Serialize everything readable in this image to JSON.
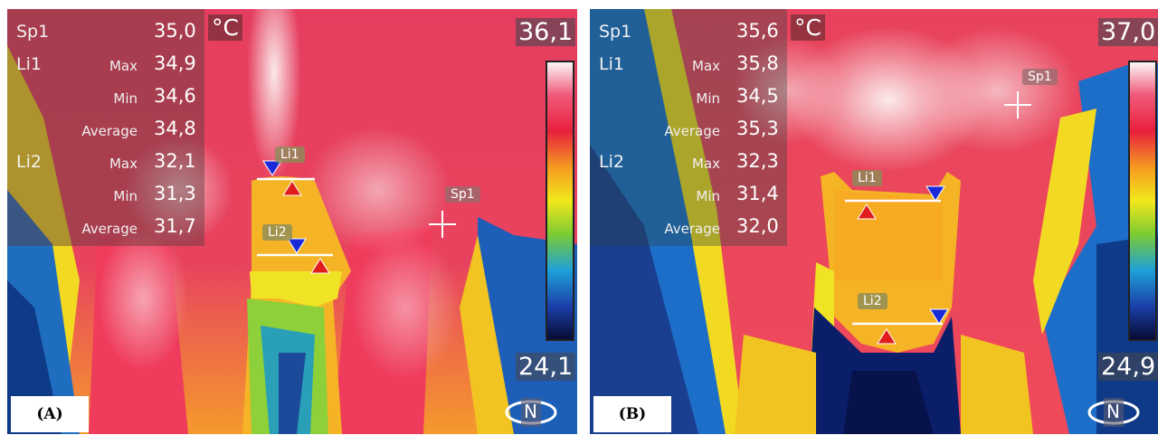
{
  "panels": [
    {
      "id": "A",
      "label": "(A)",
      "unit": "°C",
      "scale_max": "36,1",
      "scale_min": "24,1",
      "compass_letter": "N",
      "tags": {
        "li1": "Li1",
        "li2": "Li2",
        "sp1": "Sp1"
      },
      "readout": {
        "sp1": {
          "name": "Sp1",
          "value": "35,0"
        },
        "li1": {
          "name": "Li1",
          "max_label": "Max",
          "max": "34,9",
          "min_label": "Min",
          "min": "34,6",
          "avg_label": "Average",
          "avg": "34,8"
        },
        "li2": {
          "name": "Li2",
          "max_label": "Max",
          "max": "32,1",
          "min_label": "Min",
          "min": "31,3",
          "avg_label": "Average",
          "avg": "31,7"
        }
      }
    },
    {
      "id": "B",
      "label": "(B)",
      "unit": "°C",
      "scale_max": "37,0",
      "scale_min": "24,9",
      "compass_letter": "N",
      "tags": {
        "li1": "Li1",
        "li2": "Li2",
        "sp1": "Sp1"
      },
      "readout": {
        "sp1": {
          "name": "Sp1",
          "value": "35,6"
        },
        "li1": {
          "name": "Li1",
          "max_label": "Max",
          "max": "35,8",
          "min_label": "Min",
          "min": "34,5",
          "avg_label": "Average",
          "avg": "35,3"
        },
        "li2": {
          "name": "Li2",
          "max_label": "Max",
          "max": "32,3",
          "min_label": "Min",
          "min": "31,4",
          "avg_label": "Average",
          "avg": "32,0"
        }
      }
    }
  ],
  "colors": {
    "iron_hot": "#f7e8e8",
    "iron_warm": "#ee3a5a",
    "iron_mid": "#f5b022",
    "iron_cool": "#f0e020",
    "iron_cold": "#1d6fd0",
    "iron_coldest": "#0b1a5e"
  }
}
